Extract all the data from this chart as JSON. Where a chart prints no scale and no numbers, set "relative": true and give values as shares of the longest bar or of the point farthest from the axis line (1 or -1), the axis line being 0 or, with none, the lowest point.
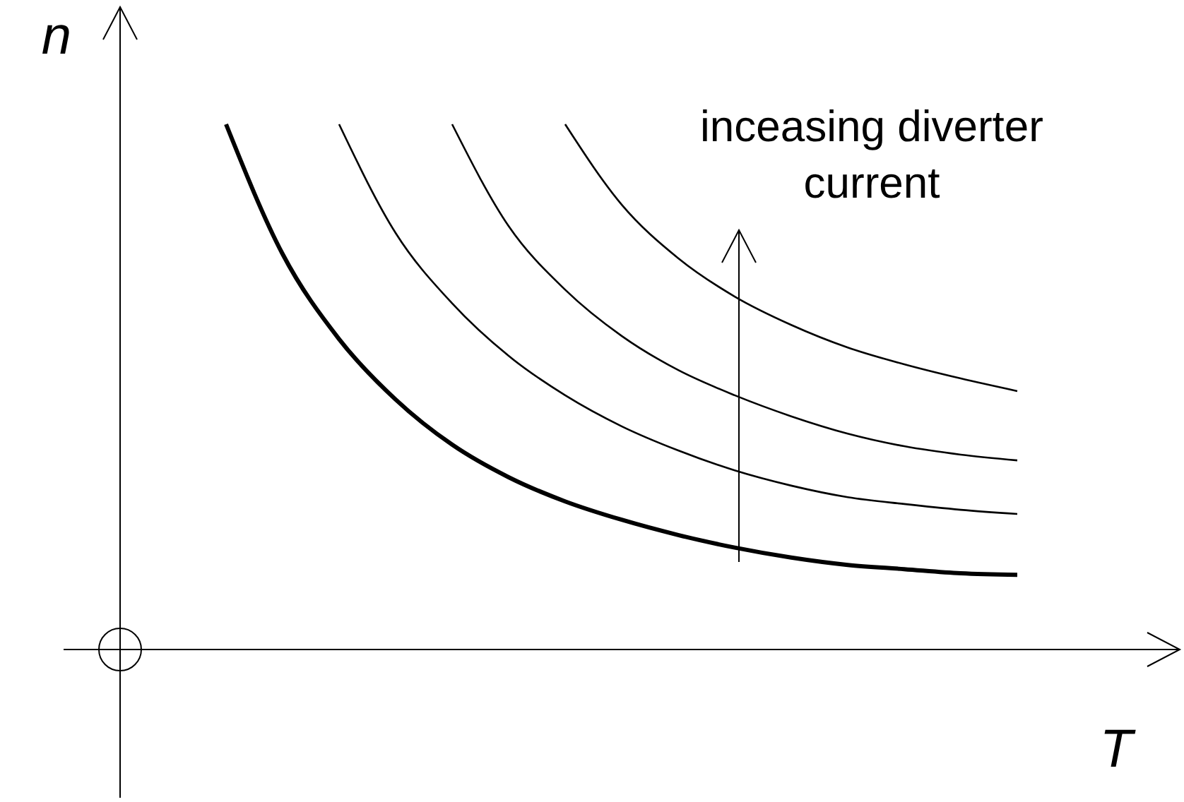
{
  "chart_data": {
    "type": "line",
    "relative": true,
    "xlabel": "T",
    "ylabel": "n",
    "annotations": [
      "inceasing diverter current"
    ],
    "categories": [
      null,
      null,
      null,
      null,
      null,
      null,
      null,
      null,
      null,
      null,
      null,
      null,
      null,
      null,
      null
    ],
    "series": [
      {
        "color": "#000000",
        "values": [
          1.0,
          0.753,
          0.591,
          0.476,
          0.39,
          0.328,
          0.282,
          0.247,
          0.218,
          0.194,
          0.175,
          0.161,
          0.153,
          0.145,
          0.142
        ]
      },
      {
        "color": "#000000",
        "values": [
          null,
          null,
          1.0,
          0.793,
          0.659,
          0.559,
          0.484,
          0.425,
          0.379,
          0.341,
          0.312,
          0.29,
          0.277,
          0.266,
          0.258
        ]
      },
      {
        "color": "#000000",
        "values": [
          null,
          null,
          null,
          null,
          1.0,
          0.806,
          0.685,
          0.597,
          0.532,
          0.484,
          0.444,
          0.411,
          0.387,
          0.371,
          0.36
        ]
      },
      {
        "color": "#000000",
        "values": [
          null,
          null,
          null,
          null,
          null,
          null,
          1.0,
          0.847,
          0.745,
          0.672,
          0.618,
          0.575,
          0.543,
          0.516,
          0.492
        ]
      }
    ]
  }
}
